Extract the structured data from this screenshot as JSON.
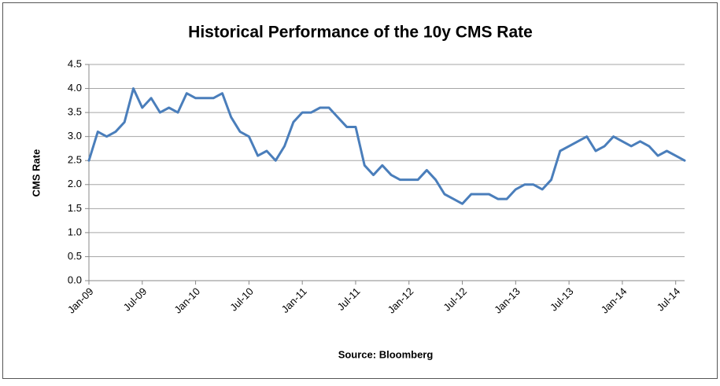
{
  "chart_data": {
    "type": "line",
    "title": "Historical Performance of the 10y CMS Rate",
    "y_label": "CMS Rate",
    "x_label": "Source: Bloomberg",
    "color": "#4a7ebb",
    "grid": true,
    "categories": [
      "Jan-09",
      null,
      null,
      null,
      null,
      null,
      "Jul-09",
      null,
      null,
      null,
      null,
      null,
      "Jan-10",
      null,
      null,
      null,
      null,
      null,
      "Jul-10",
      null,
      null,
      null,
      null,
      null,
      "Jan-11",
      null,
      null,
      null,
      null,
      null,
      "Jul-11",
      null,
      null,
      null,
      null,
      null,
      "Jan-12",
      null,
      null,
      null,
      null,
      null,
      "Jul-12",
      null,
      null,
      null,
      null,
      null,
      "Jan-13",
      null,
      null,
      null,
      null,
      null,
      "Jul-13",
      null,
      null,
      null,
      null,
      null,
      "Jan-14",
      null,
      null,
      null,
      null,
      null,
      "Jul-14",
      null
    ],
    "values": [
      2.5,
      3.1,
      3.0,
      3.1,
      3.3,
      4.0,
      3.6,
      3.8,
      3.5,
      3.6,
      3.5,
      3.9,
      3.8,
      3.8,
      3.8,
      3.9,
      3.4,
      3.1,
      3.0,
      2.6,
      2.7,
      2.5,
      2.8,
      3.3,
      3.5,
      3.5,
      3.6,
      3.6,
      3.4,
      3.2,
      3.2,
      2.4,
      2.2,
      2.4,
      2.2,
      2.1,
      2.1,
      2.1,
      2.3,
      2.1,
      1.8,
      1.7,
      1.6,
      1.8,
      1.8,
      1.8,
      1.7,
      1.7,
      1.9,
      2.0,
      2.0,
      1.9,
      2.1,
      2.7,
      2.8,
      2.9,
      3.0,
      2.7,
      2.8,
      3.0,
      2.9,
      2.8,
      2.9,
      2.8,
      2.6,
      2.7,
      2.6,
      2.5
    ],
    "ylim": [
      0,
      4.5
    ],
    "yticks": [
      {
        "value": 0,
        "label": "0.0"
      },
      0.5,
      {
        "value": 1,
        "label": "1.0"
      },
      1.5,
      {
        "value": 2,
        "label": "2.0"
      },
      2.5,
      {
        "value": 3,
        "label": "3.0"
      },
      3.5,
      {
        "value": 4,
        "label": "4.0"
      },
      4.5
    ]
  }
}
